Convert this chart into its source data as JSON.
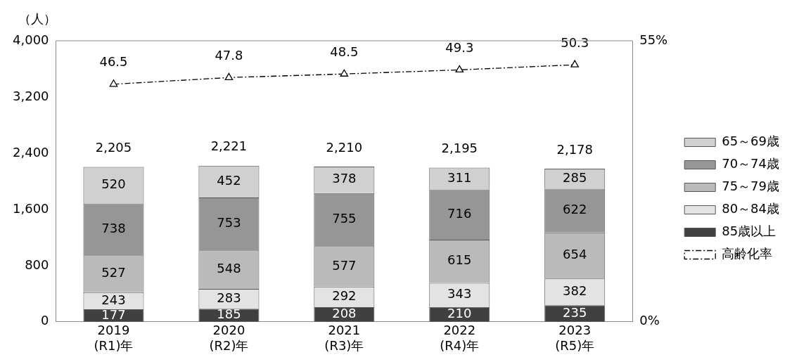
{
  "chart_data": {
    "type": "bar",
    "stacked": true,
    "ylabel": "（人）",
    "categories": [
      "2019\n(R1)年",
      "2020\n(R2)年",
      "2021\n(R3)年",
      "2022\n(R4)年",
      "2023\n(R5)年"
    ],
    "series": [
      {
        "name": "85歳以上",
        "color": "#404040",
        "values": [
          177,
          185,
          208,
          210,
          235
        ]
      },
      {
        "name": "80～84歳",
        "color": "#e3e3e3",
        "values": [
          243,
          283,
          292,
          343,
          382
        ]
      },
      {
        "name": "75～79歳",
        "color": "#bababa",
        "values": [
          527,
          548,
          577,
          615,
          654
        ]
      },
      {
        "name": "70～74歳",
        "color": "#969696",
        "values": [
          738,
          753,
          755,
          716,
          622
        ]
      },
      {
        "name": "65～69歳",
        "color": "#d0d0d0",
        "values": [
          520,
          452,
          378,
          311,
          285
        ]
      },
      {
        "name": "高齢化率",
        "type": "line",
        "axis": "y2",
        "color": "#000000",
        "marker": "triangle",
        "line_style": "dashed",
        "values": [
          46.5,
          47.8,
          48.5,
          49.3,
          50.3
        ]
      }
    ],
    "totals": [
      "2,205",
      "2,221",
      "2,210",
      "2,195",
      "2,178"
    ],
    "data_labels": true,
    "ylim": [
      0,
      4000
    ],
    "yticks": [
      {
        "value": 0,
        "label": "0"
      },
      {
        "value": 800,
        "label": "800"
      },
      {
        "value": 1600,
        "label": "1,600"
      },
      {
        "value": 2400,
        "label": "2,400"
      },
      {
        "value": 3200,
        "label": "3,200"
      },
      {
        "value": 4000,
        "label": "4,000"
      }
    ],
    "y2lim": [
      0,
      55
    ],
    "y2ticks": [
      {
        "value": 0,
        "label": "0%"
      },
      {
        "value": 55,
        "label": "55%"
      }
    ],
    "grid": false,
    "legend": "right"
  }
}
